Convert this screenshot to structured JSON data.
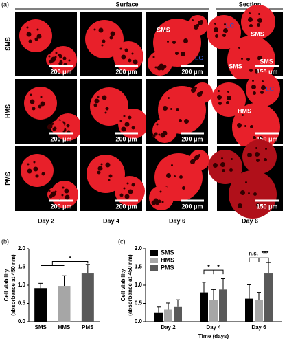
{
  "panel_a": {
    "label": "(a)",
    "headers": [
      "Surface",
      "Section"
    ],
    "rows": [
      "SMS",
      "HMS",
      "PMS"
    ],
    "days": [
      "Day 2",
      "Day 4",
      "Day 6",
      "Day 6"
    ],
    "scale_bars": [
      [
        "200 μm",
        "200 μm",
        "200 μm",
        "150 μm"
      ],
      [
        "200 μm",
        "200 μm",
        "200 μm",
        "150 μm"
      ],
      [
        "200 μm",
        "200 μm",
        "200 μm",
        "150 μm"
      ]
    ],
    "in_image": [
      "SMS",
      "LC",
      "LC",
      "SMS",
      "SMS",
      "SMS",
      "LC",
      "HMS"
    ]
  },
  "chart_data": [
    {
      "type": "bar",
      "label": "(b)",
      "ylabel": [
        "Cell viability",
        "(absorbance at 450 nm)"
      ],
      "categories": [
        "SMS",
        "HMS",
        "PMS"
      ],
      "values": [
        0.92,
        0.98,
        1.32
      ],
      "errors": [
        0.13,
        0.28,
        0.25
      ],
      "colors": [
        "#000000",
        "#a6a6a6",
        "#595959"
      ],
      "ylim": [
        0,
        2
      ],
      "yticks": [
        {
          "value": 0,
          "label": "0.0"
        },
        0.5,
        {
          "value": 1,
          "label": "1.0"
        },
        1.5,
        {
          "value": 2,
          "label": "2.0"
        }
      ],
      "annotations": [
        "*"
      ]
    },
    {
      "type": "grouped_bar",
      "label": "(c)",
      "ylabel": [
        "Cell viability",
        "(absorbance at 450 nm)"
      ],
      "xlabel": "Time (days)",
      "categories": [
        "Day 2",
        "Day 4",
        "Day 6"
      ],
      "series": [
        {
          "name": "SMS",
          "color": "#000000",
          "values": [
            0.25,
            0.8,
            0.63
          ],
          "errors": [
            0.15,
            0.28,
            0.38
          ]
        },
        {
          "name": "HMS",
          "color": "#a6a6a6",
          "values": [
            0.33,
            0.6,
            0.6
          ],
          "errors": [
            0.18,
            0.28,
            0.2
          ]
        },
        {
          "name": "PMS",
          "color": "#595959",
          "values": [
            0.4,
            0.88,
            1.32
          ],
          "errors": [
            0.2,
            0.3,
            0.3
          ]
        }
      ],
      "ylim": [
        0,
        2
      ],
      "yticks": [
        {
          "value": 0,
          "label": "0.0"
        },
        0.5,
        {
          "value": 1,
          "label": "1.0"
        },
        1.5,
        {
          "value": 2,
          "label": "2.0"
        }
      ],
      "legend": "upper left",
      "annotations": [
        "*",
        "*",
        "n.s.",
        "***"
      ]
    }
  ]
}
